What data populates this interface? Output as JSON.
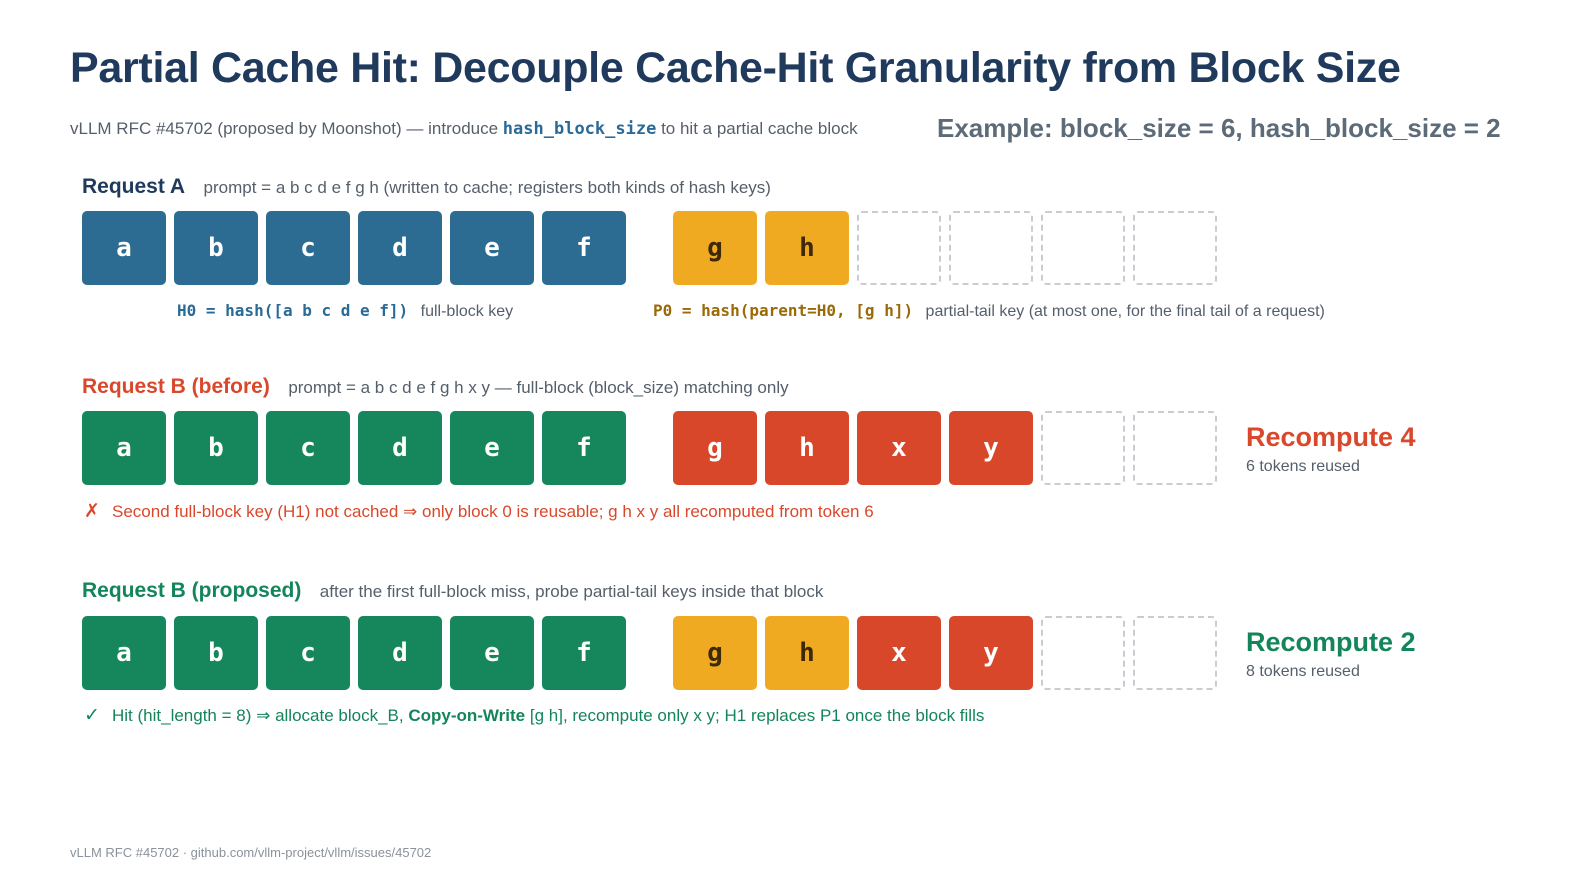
{
  "title": "Partial Cache Hit: Decouple Cache-Hit Granularity from Block Size",
  "subtitle": {
    "before": "vLLM RFC #45702 (proposed by Moonshot) — introduce",
    "code": "hash_block_size",
    "after": "to hit a partial cache block"
  },
  "example": "Example: block_size = 6, hash_block_size = 2",
  "colors": {
    "cached_full_block": "#2d6c92",
    "reused": "#16875c",
    "partial_tail": "#f0aa22",
    "recompute": "#d9472a",
    "empty_slot": "#c9ccd1"
  },
  "request_a": {
    "title": "Request A",
    "desc": "prompt = a b c d e f g h   (written to cache; registers both kinds of hash keys)",
    "cells": [
      {
        "text": "a",
        "kind": "cached"
      },
      {
        "text": "b",
        "kind": "cached"
      },
      {
        "text": "c",
        "kind": "cached"
      },
      {
        "text": "d",
        "kind": "cached"
      },
      {
        "text": "e",
        "kind": "cached"
      },
      {
        "text": "f",
        "kind": "cached"
      },
      {
        "text": "g",
        "kind": "partial"
      },
      {
        "text": "h",
        "kind": "partial"
      },
      {
        "text": "",
        "kind": "empty"
      },
      {
        "text": "",
        "kind": "empty"
      },
      {
        "text": "",
        "kind": "empty"
      },
      {
        "text": "",
        "kind": "empty"
      }
    ],
    "full_key_code": "H0 = hash([a b c d e f])",
    "full_key_label": "full-block key",
    "partial_key_code": "P0 = hash(parent=H0, [g h])",
    "partial_key_label": "partial-tail key (at most one, for the final tail of a request)"
  },
  "request_b_before": {
    "title": "Request B (before)",
    "desc": "prompt = a b c d e f g h x y — full-block (block_size) matching only",
    "cells": [
      {
        "text": "a",
        "kind": "reused"
      },
      {
        "text": "b",
        "kind": "reused"
      },
      {
        "text": "c",
        "kind": "reused"
      },
      {
        "text": "d",
        "kind": "reused"
      },
      {
        "text": "e",
        "kind": "reused"
      },
      {
        "text": "f",
        "kind": "reused"
      },
      {
        "text": "g",
        "kind": "recompute"
      },
      {
        "text": "h",
        "kind": "recompute"
      },
      {
        "text": "x",
        "kind": "recompute"
      },
      {
        "text": "y",
        "kind": "recompute"
      },
      {
        "text": "",
        "kind": "empty"
      },
      {
        "text": "",
        "kind": "empty"
      }
    ],
    "recompute": "Recompute 4",
    "reused": "6 tokens reused",
    "note_mark": "✗",
    "note": "Second full-block key (H1) not cached ⇒ only block 0 is reusable; g h x y all recomputed from token 6"
  },
  "request_b_proposed": {
    "title": "Request B (proposed)",
    "desc": "after the first full-block miss, probe partial-tail keys inside that block",
    "cells": [
      {
        "text": "a",
        "kind": "reused"
      },
      {
        "text": "b",
        "kind": "reused"
      },
      {
        "text": "c",
        "kind": "reused"
      },
      {
        "text": "d",
        "kind": "reused"
      },
      {
        "text": "e",
        "kind": "reused"
      },
      {
        "text": "f",
        "kind": "reused"
      },
      {
        "text": "g",
        "kind": "partial"
      },
      {
        "text": "h",
        "kind": "partial"
      },
      {
        "text": "x",
        "kind": "recompute"
      },
      {
        "text": "y",
        "kind": "recompute"
      },
      {
        "text": "",
        "kind": "empty"
      },
      {
        "text": "",
        "kind": "empty"
      }
    ],
    "recompute": "Recompute 2",
    "reused": "8 tokens reused",
    "note_mark": "✓",
    "note_before": "Hit (hit_length = 8) ⇒ allocate block_B,",
    "note_bold": "Copy-on-Write",
    "note_after": "[g h], recompute only x y; H1 replaces P1 once the block fills"
  },
  "footer": "vLLM RFC #45702 · github.com/vllm-project/vllm/issues/45702"
}
